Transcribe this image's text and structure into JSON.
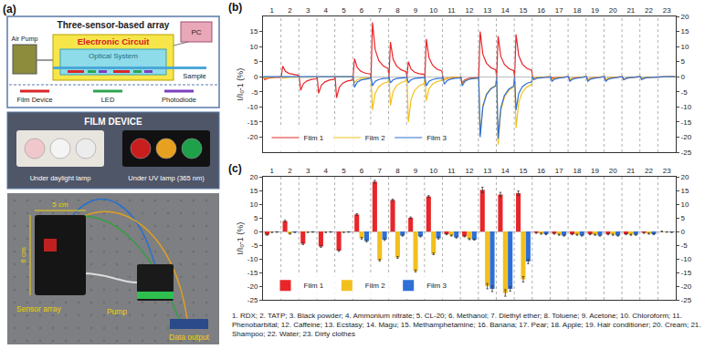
{
  "panel_a": {
    "label": "(a)",
    "schematic": {
      "title": "Three-sensor-based array",
      "air_pump": "Air Pump",
      "circuit": "Electronic Circuit",
      "optics": "Optical System",
      "pc": "PC",
      "sample": "Sample",
      "legend": [
        {
          "name": "Film Device",
          "color": "#d9262a"
        },
        {
          "name": "LED",
          "color": "#2ea44f"
        },
        {
          "name": "Photodiode",
          "color": "#7b3fbf"
        }
      ]
    },
    "film_device": {
      "title": "FILM DEVICE",
      "views": [
        {
          "caption": "Under daylight lamp",
          "colors": [
            "#f0c8cc",
            "#f4f4f4",
            "#ececec"
          ]
        },
        {
          "caption": "Under UV lamp (365 nm)",
          "colors": [
            "#c81e1e",
            "#e8a020",
            "#1fa04a"
          ]
        }
      ]
    },
    "photo": {
      "width": "5 cm",
      "height": "6 cm",
      "sensor": "Sensor array",
      "pump": "Pump",
      "output": "Data output"
    }
  },
  "chart_data": [
    {
      "label": "(b)",
      "type": "line",
      "y_label": "I/I₀-1 (%)",
      "x": [
        0.02,
        0.1,
        0.25,
        0.45,
        0.7,
        0.97,
        1.02,
        1.1,
        1.25,
        1.45,
        1.7,
        1.97,
        2.02,
        2.1,
        2.25,
        2.45,
        2.7,
        2.97,
        3.02,
        3.1,
        3.25,
        3.45,
        3.7,
        3.97,
        4.02,
        4.1,
        4.25,
        4.45,
        4.7,
        4.97,
        5.02,
        5.1,
        5.25,
        5.45,
        5.7,
        5.97,
        6.02,
        6.1,
        6.25,
        6.45,
        6.7,
        6.97,
        7.02,
        7.1,
        7.25,
        7.45,
        7.7,
        7.97,
        8.02,
        8.1,
        8.25,
        8.45,
        8.7,
        8.97,
        9.02,
        9.1,
        9.25,
        9.45,
        9.7,
        9.97,
        10.02,
        10.1,
        10.25,
        10.45,
        10.7,
        10.97,
        11.02,
        11.1,
        11.25,
        11.45,
        11.7,
        11.97,
        12.02,
        12.1,
        12.25,
        12.45,
        12.7,
        12.97,
        13.02,
        13.1,
        13.25,
        13.45,
        13.7,
        13.97,
        14.02,
        14.1,
        14.25,
        14.45,
        14.7,
        14.97,
        15.02,
        15.1,
        15.25,
        15.45,
        15.7,
        15.97,
        16.02,
        16.1,
        16.25,
        16.45,
        16.7,
        16.97,
        17.02,
        17.1,
        17.25,
        17.45,
        17.7,
        17.97,
        18.02,
        18.1,
        18.25,
        18.45,
        18.7,
        18.97,
        19.02,
        19.1,
        19.25,
        19.45,
        19.7,
        19.97,
        20.02,
        20.1,
        20.25,
        20.45,
        20.7,
        20.97,
        21.02,
        21.1,
        21.25,
        21.45,
        21.7,
        21.97,
        22.02,
        22.1,
        22.25,
        22.45,
        22.7,
        22.97
      ],
      "series": [
        {
          "name": "Film 1",
          "color": "#e8262a",
          "values": [
            0,
            -1,
            -0.5,
            -0.3,
            -0.2,
            -0.2,
            0,
            3.5,
            1.8,
            1.1,
            0.7,
            0.5,
            0,
            -4.5,
            -2.3,
            -1.4,
            -0.9,
            -0.7,
            0,
            -5.5,
            -2.8,
            -1.7,
            -1.1,
            -0.8,
            0,
            -7,
            -3.5,
            -2.1,
            -1.4,
            -1.1,
            0,
            6,
            3,
            1.8,
            1.2,
            0.9,
            0,
            18,
            9,
            5.4,
            3.6,
            2.7,
            0,
            11.5,
            5.8,
            3.5,
            2.3,
            1.7,
            0,
            5,
            2.5,
            1.5,
            1,
            0.8,
            0,
            12.5,
            6.3,
            3.8,
            2.5,
            1.9,
            0,
            -1,
            -0.5,
            -0.3,
            -0.2,
            -0.2,
            0,
            -2,
            -1,
            -0.6,
            -0.4,
            -0.3,
            0,
            15,
            7.5,
            4.5,
            3,
            2.3,
            0,
            13.5,
            6.8,
            4.1,
            2.7,
            2,
            0,
            14,
            7,
            4.2,
            2.8,
            2.1,
            0,
            -0.5,
            -0.3,
            -0.2,
            -0.1,
            -0.1,
            0,
            -0.5,
            -0.3,
            -0.2,
            -0.1,
            -0.1,
            0,
            -1,
            -0.5,
            -0.3,
            -0.2,
            -0.2,
            0,
            -1,
            -0.5,
            -0.3,
            -0.2,
            -0.2,
            0,
            -1,
            -0.5,
            -0.3,
            -0.2,
            -0.2,
            0,
            -1,
            -0.5,
            -0.3,
            -0.2,
            -0.2,
            0,
            -0.5,
            -0.3,
            -0.2,
            -0.1,
            -0.1,
            0,
            0,
            0,
            0,
            0,
            0
          ]
        },
        {
          "name": "Film 2",
          "color": "#f2c01e",
          "values": [
            0,
            -0.5,
            -0.3,
            -0.2,
            -0.1,
            -0.1,
            0,
            -0.5,
            -0.3,
            -0.2,
            -0.1,
            -0.1,
            0,
            0,
            0,
            0,
            0,
            0,
            0,
            0,
            0,
            0,
            0,
            0,
            0,
            0,
            0,
            0,
            0,
            0,
            0,
            -2,
            -1,
            -0.6,
            -0.4,
            -0.3,
            0,
            -11,
            -5.5,
            -3.3,
            -2.2,
            -1.7,
            0,
            -9.5,
            -4.8,
            -2.9,
            -1.9,
            -1.4,
            0,
            -15,
            -7.5,
            -4.5,
            -3,
            -2.3,
            0,
            -8,
            -4,
            -2.4,
            -1.6,
            -1.2,
            0,
            -1,
            -0.5,
            -0.3,
            -0.2,
            -0.2,
            0,
            -2.5,
            -1.3,
            -0.8,
            -0.5,
            -0.4,
            0,
            -19,
            -9.5,
            -5.7,
            -3.8,
            -2.9,
            0,
            -22.5,
            -11.3,
            -6.8,
            -4.5,
            -3.4,
            0,
            -17,
            -8.5,
            -5.1,
            -3.4,
            -2.6,
            0,
            -0.5,
            -0.3,
            -0.2,
            -0.1,
            -0.1,
            0,
            -1,
            -0.5,
            -0.3,
            -0.2,
            -0.2,
            0,
            -1,
            -0.5,
            -0.3,
            -0.2,
            -0.2,
            0,
            -1,
            -0.5,
            -0.3,
            -0.2,
            -0.2,
            0,
            -1,
            -0.5,
            -0.3,
            -0.2,
            -0.2,
            0,
            -1,
            -0.5,
            -0.3,
            -0.2,
            -0.2,
            0,
            -0.5,
            -0.3,
            -0.2,
            -0.1,
            -0.1,
            0,
            0,
            0,
            0,
            0,
            0
          ]
        },
        {
          "name": "Film 3",
          "color": "#2f6fd6",
          "values": [
            0,
            0,
            0,
            0,
            0,
            0,
            0,
            0,
            0,
            0,
            0,
            0,
            0,
            0,
            0,
            0,
            0,
            0,
            0,
            0,
            0,
            0,
            0,
            0,
            0,
            0,
            0,
            0,
            0,
            0,
            0,
            -3.5,
            -1.8,
            -1.1,
            -0.7,
            -0.5,
            0,
            -3,
            -1.5,
            -0.9,
            -0.6,
            -0.5,
            0,
            -2,
            -1,
            -0.6,
            -0.4,
            -0.3,
            0,
            -2,
            -1,
            -0.6,
            -0.4,
            -0.3,
            0,
            -3,
            -1.5,
            -0.9,
            -0.6,
            -0.5,
            0,
            -2.5,
            -1.3,
            -0.8,
            -0.5,
            -0.4,
            0,
            -3,
            -1.5,
            -0.9,
            -0.6,
            -0.5,
            0,
            -20,
            -10,
            -6,
            -4,
            -3,
            0,
            -20.5,
            -10.3,
            -6.2,
            -4.1,
            -3.1,
            0,
            -11,
            -5.5,
            -3.3,
            -2.2,
            -1.7,
            0,
            -1,
            -0.5,
            -0.3,
            -0.2,
            -0.2,
            0,
            -1.5,
            -0.8,
            -0.5,
            -0.3,
            -0.2,
            0,
            -1.5,
            -0.8,
            -0.5,
            -0.3,
            -0.2,
            0,
            -1.5,
            -0.8,
            -0.5,
            -0.3,
            -0.2,
            0,
            -1.5,
            -0.8,
            -0.5,
            -0.3,
            -0.2,
            0,
            -1,
            -0.5,
            -0.3,
            -0.2,
            -0.2,
            0,
            -1,
            -0.5,
            -0.3,
            -0.2,
            -0.2,
            0,
            0,
            0,
            0,
            0,
            0
          ]
        }
      ],
      "xlim": [
        0,
        23
      ],
      "xticks": [
        {
          "value": 0.5,
          "label": "1"
        },
        {
          "value": 1.5,
          "label": "2"
        },
        {
          "value": 2.5,
          "label": "3"
        },
        {
          "value": 3.5,
          "label": "4"
        },
        {
          "value": 4.5,
          "label": "5"
        },
        {
          "value": 5.5,
          "label": "6"
        },
        {
          "value": 6.5,
          "label": "7"
        },
        {
          "value": 7.5,
          "label": "8"
        },
        {
          "value": 8.5,
          "label": "9"
        },
        {
          "value": 9.5,
          "label": "10"
        },
        {
          "value": 10.5,
          "label": "11"
        },
        {
          "value": 11.5,
          "label": "12"
        },
        {
          "value": 12.5,
          "label": "13"
        },
        {
          "value": 13.5,
          "label": "14"
        },
        {
          "value": 14.5,
          "label": "15"
        },
        {
          "value": 15.5,
          "label": "16"
        },
        {
          "value": 16.5,
          "label": "17"
        },
        {
          "value": 17.5,
          "label": "18"
        },
        {
          "value": 18.5,
          "label": "19"
        },
        {
          "value": 19.5,
          "label": "20"
        },
        {
          "value": 20.5,
          "label": "21"
        },
        {
          "value": 21.5,
          "label": "22"
        },
        {
          "value": 22.5,
          "label": "23"
        }
      ],
      "ylim": [
        -25,
        20
      ],
      "yticks": [
        -20,
        -15,
        -10,
        -5,
        0,
        5,
        10,
        15
      ],
      "y2lim": [
        -25,
        20
      ],
      "y2ticks": [
        -25,
        -20,
        -15,
        -10,
        -5,
        0,
        5,
        10,
        15,
        20
      ],
      "legend": "bottom left",
      "grid": true
    },
    {
      "label": "(c)",
      "type": "bar",
      "y_label": "I/I₀-1 (%)",
      "categories": [
        "1",
        "2",
        "3",
        "4",
        "5",
        "6",
        "7",
        "8",
        "9",
        "10",
        "11",
        "12",
        "13",
        "14",
        "15",
        "16",
        "17",
        "18",
        "19",
        "20",
        "21",
        "22",
        "23"
      ],
      "series": [
        {
          "name": "Film 1",
          "color": "#e8262a",
          "values": [
            -1.2,
            3.8,
            -4.5,
            -5.5,
            -7,
            6.2,
            18.2,
            11.5,
            5,
            12.8,
            -1,
            -1.8,
            15.2,
            13.5,
            14,
            -0.5,
            -0.8,
            -1,
            -1,
            -1,
            -1,
            -0.5,
            0
          ],
          "errors": [
            0.2,
            0.3,
            0.3,
            0.3,
            0.3,
            0.3,
            0.5,
            0.3,
            0.3,
            0.3,
            0.2,
            0.2,
            1,
            0.8,
            0.8,
            0.2,
            0.2,
            0.2,
            0.2,
            0.2,
            0.2,
            0.2,
            0.1
          ]
        },
        {
          "name": "Film 2",
          "color": "#f2c01e",
          "values": [
            -0.3,
            -0.8,
            -0.3,
            -0.3,
            -0.3,
            -2.5,
            -10.5,
            -9.5,
            -14.5,
            -8.2,
            -1.5,
            -2.8,
            -20,
            -22.5,
            -17.5,
            -0.8,
            -1.2,
            -1.2,
            -1.2,
            -1.2,
            -1.2,
            -0.8,
            -0.2
          ],
          "errors": [
            0.1,
            0.2,
            0.1,
            0.1,
            0.1,
            0.3,
            0.3,
            0.3,
            0.4,
            0.3,
            0.2,
            0.2,
            1,
            1.2,
            1,
            0.2,
            0.2,
            0.2,
            0.2,
            0.2,
            0.2,
            0.2,
            0.1
          ]
        },
        {
          "name": "Film 3",
          "color": "#2f6fd6",
          "values": [
            -0.2,
            -0.3,
            -0.2,
            -0.2,
            -0.2,
            -3.5,
            -3,
            -1.5,
            -1.8,
            -2.5,
            -2.2,
            -3,
            -21,
            -21,
            -11,
            -1,
            -1.5,
            -1.5,
            -1.5,
            -1.5,
            -1.2,
            -1,
            -0.3
          ],
          "errors": [
            0.1,
            0.1,
            0.1,
            0.1,
            0.1,
            0.3,
            0.3,
            0.2,
            0.2,
            0.3,
            0.2,
            0.2,
            1,
            0.8,
            0.8,
            0.2,
            0.2,
            0.2,
            0.2,
            0.2,
            0.2,
            0.2,
            0.1
          ]
        }
      ],
      "ylim": [
        -25,
        20
      ],
      "yticks": [
        -25,
        -20,
        -15,
        -10,
        -5,
        0,
        5,
        10,
        15,
        20
      ],
      "y2lim": [
        -25,
        20
      ],
      "y2ticks": [
        -25,
        -20,
        -15,
        -10,
        -5,
        0,
        5,
        10,
        15,
        20
      ],
      "legend": "bottom left",
      "grid": true
    }
  ],
  "footnote": "1. RDX;  2. TATP;  3. Black powder;  4. Ammonium nitrate;  5. CL-20;  6. Methanol;  7. Diethyl ether;  8. Toluene;  9. Acetone; 10. Chloroform;  11. Phenobarbital;  12. Caffeine;  13. Ecstasy;  14. Magu;  15. Methamphetamine;  16. Banana;  17. Pear;  18. Apple;  19. Hair conditioner;  20. Cream;  21. Shampoo;  22. Water;  23. Dirty clothes"
}
